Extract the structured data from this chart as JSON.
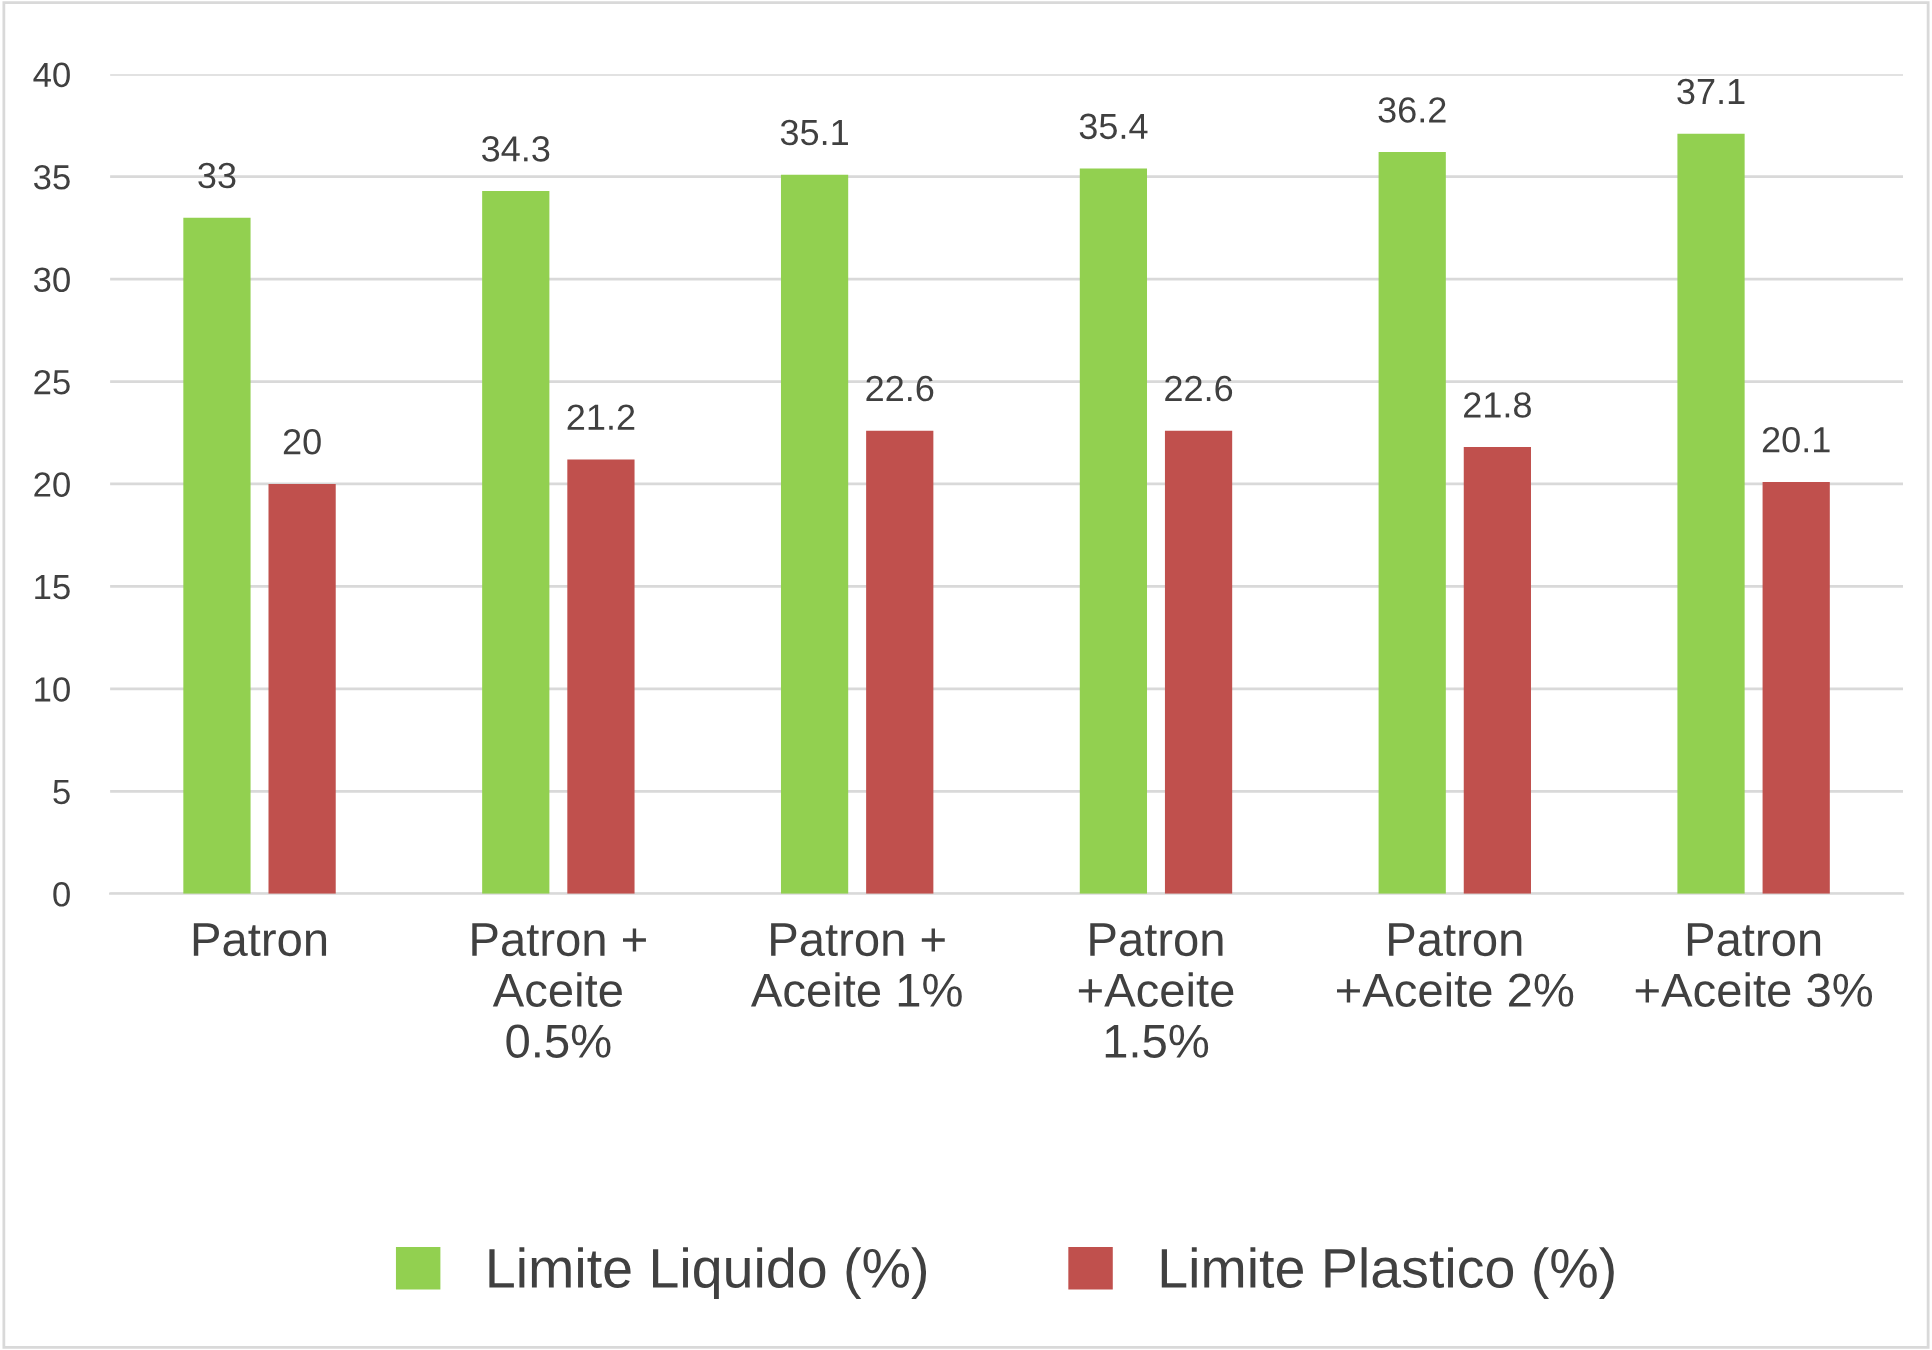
{
  "chart_data": {
    "type": "bar",
    "categories": [
      "Patron",
      "Patron +\nAceite\n0.5%",
      "Patron +\nAceite 1%",
      "Patron\n+Aceite\n1.5%",
      "Patron\n+Aceite 2%",
      "Patron\n+Aceite 3%"
    ],
    "series": [
      {
        "name": "Limite Liquido (%)",
        "color": "#92d050",
        "values": [
          33,
          34.3,
          35.1,
          35.4,
          36.2,
          37.1
        ]
      },
      {
        "name": "Limite Plastico (%)",
        "color": "#c0504d",
        "values": [
          20,
          21.2,
          22.6,
          22.6,
          21.8,
          20.1
        ]
      }
    ],
    "ylim": [
      0,
      40
    ],
    "yticks": [
      0,
      5,
      10,
      15,
      20,
      25,
      30,
      35,
      40
    ],
    "grid": "y",
    "legend": "bottom",
    "data_labels": true
  }
}
